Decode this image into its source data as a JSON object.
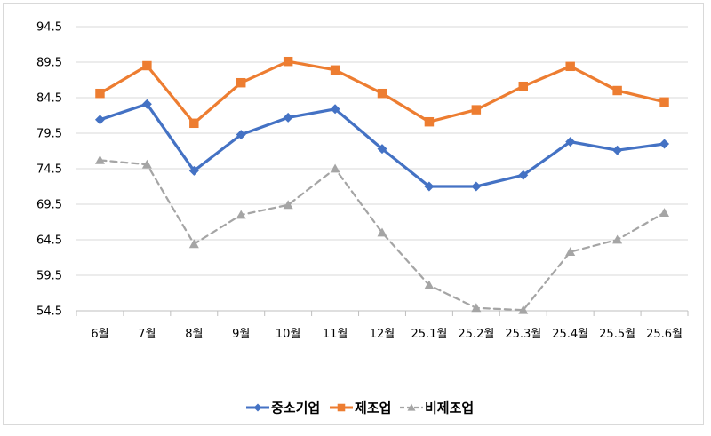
{
  "chart_data": {
    "type": "line",
    "title": "",
    "xlabel": "",
    "ylabel": "",
    "ylim": [
      54.5,
      94.5
    ],
    "yticks": [
      54.5,
      59.5,
      64.5,
      69.5,
      74.5,
      79.5,
      84.5,
      89.5,
      94.5
    ],
    "ytick_labels": [
      "54.5",
      "59.5",
      "64.5",
      "69.5",
      "74.5",
      "79.5",
      "84.5",
      "89.5",
      "94.5"
    ],
    "categories": [
      "6월",
      "7월",
      "8월",
      "9월",
      "10월",
      "11월",
      "12월",
      "25.1월",
      "25.2월",
      "25.3월",
      "25.4월",
      "25.5월",
      "25.6월"
    ],
    "grid": "horizontal",
    "legend_position": "bottom",
    "series": [
      {
        "name": "중소기업",
        "color": "#4472C4",
        "marker": "diamond",
        "dash": "solid",
        "values": [
          81.4,
          83.6,
          74.2,
          79.3,
          81.7,
          82.9,
          77.3,
          72.0,
          72.0,
          73.6,
          78.3,
          77.1,
          78.0
        ]
      },
      {
        "name": "제조업",
        "color": "#ED7D31",
        "marker": "square",
        "dash": "solid",
        "values": [
          85.1,
          89.0,
          80.9,
          86.6,
          89.6,
          88.4,
          85.1,
          81.1,
          82.8,
          86.1,
          88.9,
          85.5,
          83.9
        ]
      },
      {
        "name": "비제조업",
        "color": "#A5A5A5",
        "marker": "triangle",
        "dash": "dashed",
        "values": [
          75.7,
          75.1,
          63.9,
          68.0,
          69.4,
          74.5,
          65.5,
          58.1,
          54.9,
          54.6,
          62.8,
          64.5,
          68.3
        ]
      }
    ]
  }
}
